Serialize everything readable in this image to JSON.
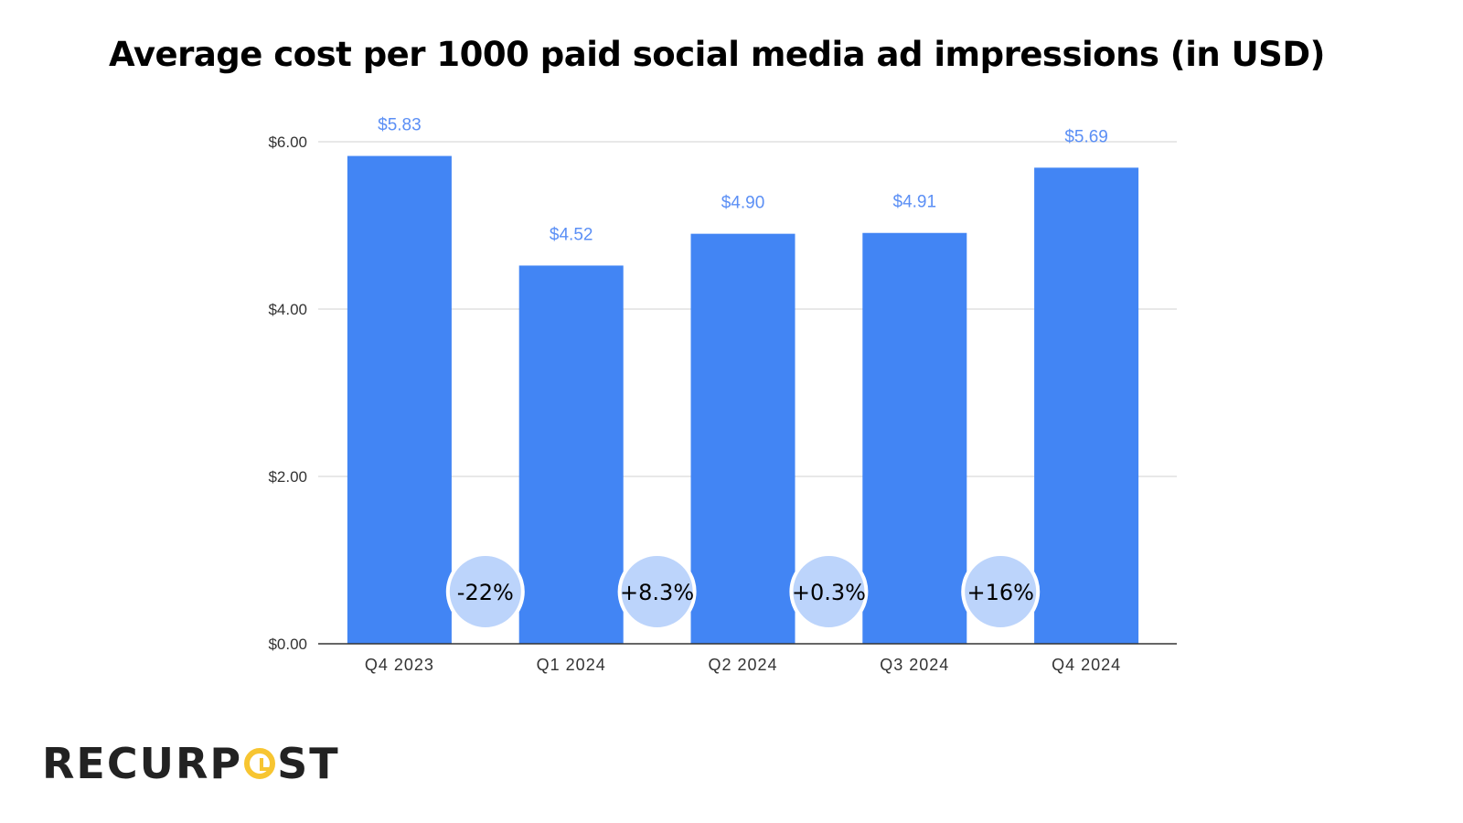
{
  "chart_data": {
    "type": "bar",
    "title": "Average cost per 1000 paid social media ad impressions (in USD)",
    "categories": [
      "Q4 2023",
      "Q1 2024",
      "Q2 2024",
      "Q3 2024",
      "Q4 2024"
    ],
    "values": [
      5.83,
      4.52,
      4.9,
      4.91,
      5.69
    ],
    "data_labels": [
      "$5.83",
      "$4.52",
      "$4.90",
      "$4.91",
      "$5.69"
    ],
    "change_labels": [
      "-22%",
      "+8.3%",
      "+0.3%",
      "+16%"
    ],
    "yticks": [
      "$0.00",
      "$2.00",
      "$4.00",
      "$6.00"
    ],
    "ytick_values": [
      0,
      2,
      4,
      6
    ],
    "ylim": [
      0,
      6
    ],
    "xlabel": "",
    "ylabel": "",
    "grid": true,
    "colors": {
      "bar": "#4285f4",
      "label": "#5b8ff5",
      "bubble": "#bcd4fb",
      "grid": "#d9d9d9",
      "axis": "#333333"
    }
  },
  "logo": {
    "text_left": "RECURP",
    "text_right": "ST",
    "accent": "#f7c531"
  }
}
